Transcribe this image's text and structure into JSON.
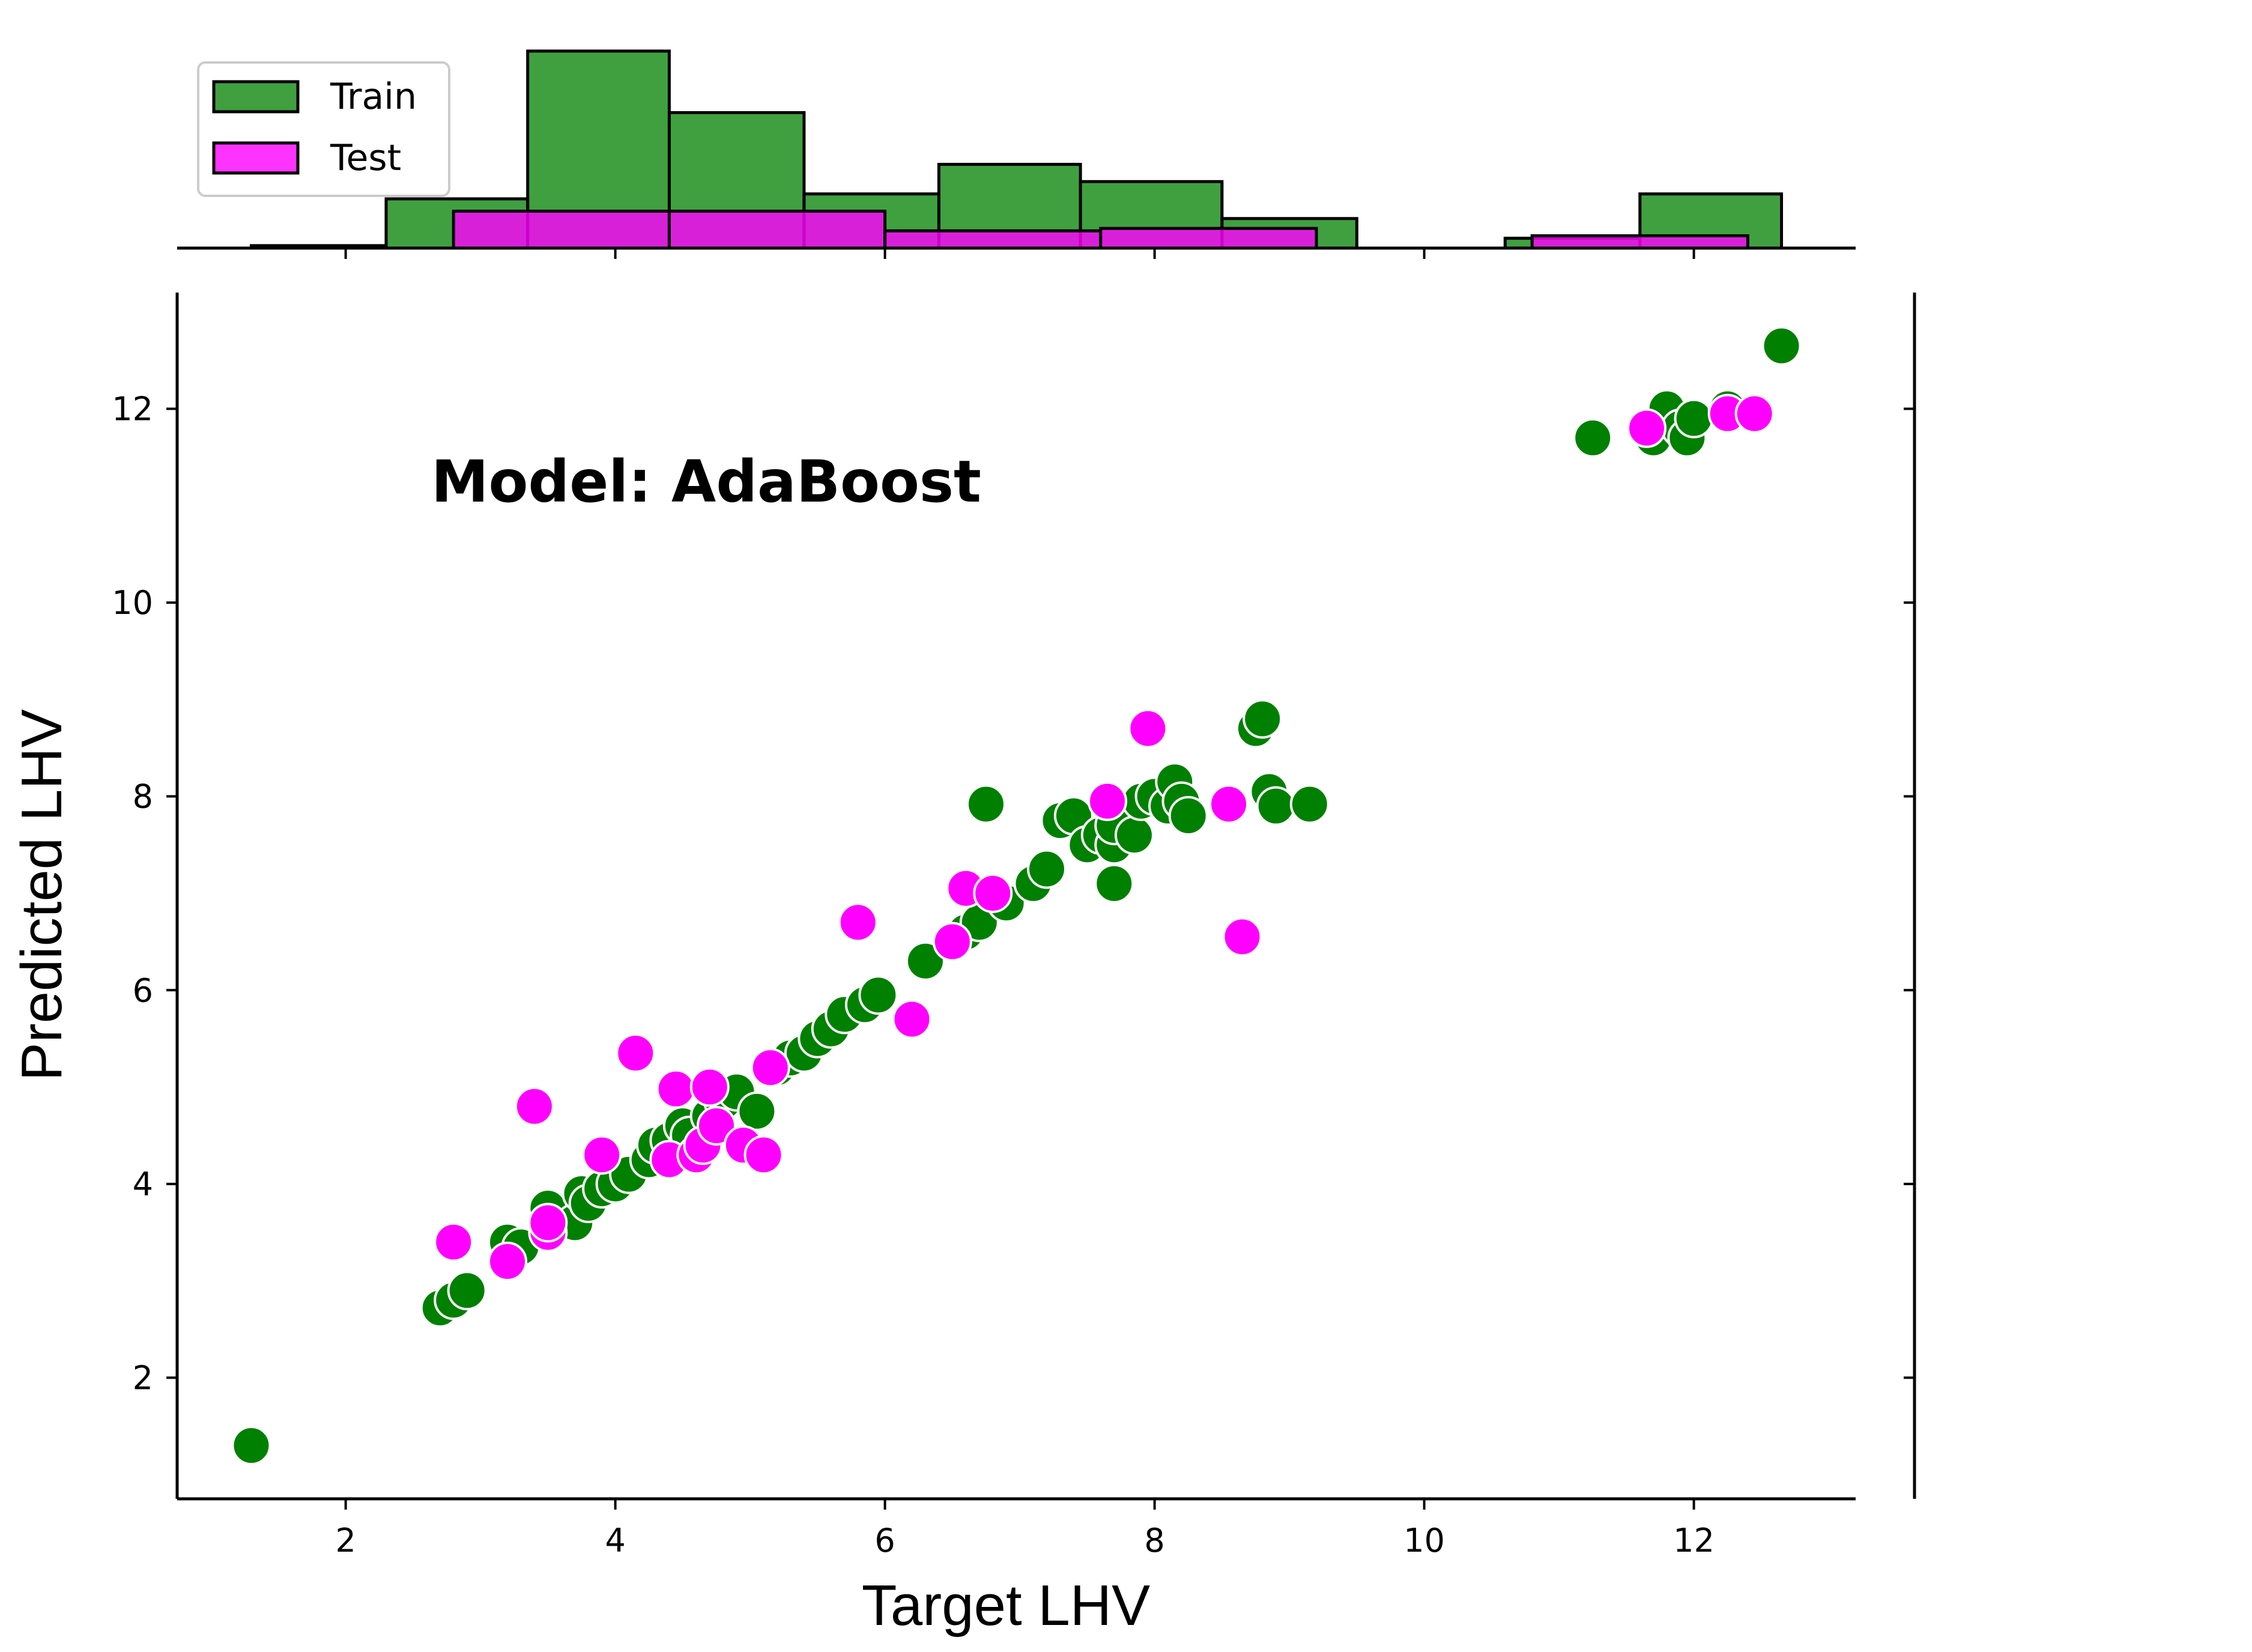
{
  "chart_data": {
    "type": "scatter",
    "xlabel": "Target LHV",
    "ylabel": "Predicted LHV",
    "annotation": "Model: AdaBoost",
    "xlim": [
      0.75,
      13.2
    ],
    "ylim": [
      0.75,
      13.2
    ],
    "x_ticks": [
      "2",
      "4",
      "6",
      "8",
      "10",
      "12"
    ],
    "y_ticks": [
      "2",
      "4",
      "6",
      "8",
      "10",
      "12"
    ],
    "legend": {
      "location": "top-left",
      "entries": [
        "Train",
        "Test"
      ]
    },
    "colors": {
      "Train": "#008000",
      "Test": "#ff00ff",
      "edge": "#ffffff",
      "hist_edge": "#000000"
    },
    "series": [
      {
        "name": "Train",
        "points": [
          [
            1.3,
            1.3
          ],
          [
            2.7,
            2.72
          ],
          [
            2.8,
            2.8
          ],
          [
            2.9,
            2.9
          ],
          [
            3.2,
            3.4
          ],
          [
            3.3,
            3.35
          ],
          [
            3.5,
            3.75
          ],
          [
            3.5,
            3.6
          ],
          [
            3.7,
            3.6
          ],
          [
            3.75,
            3.9
          ],
          [
            3.8,
            3.8
          ],
          [
            3.9,
            3.95
          ],
          [
            4.0,
            4.0
          ],
          [
            4.1,
            4.1
          ],
          [
            4.25,
            4.25
          ],
          [
            4.3,
            4.4
          ],
          [
            4.4,
            4.45
          ],
          [
            4.5,
            4.6
          ],
          [
            4.55,
            4.5
          ],
          [
            4.7,
            4.7
          ],
          [
            4.8,
            4.85
          ],
          [
            4.9,
            4.95
          ],
          [
            5.05,
            4.75
          ],
          [
            5.2,
            5.2
          ],
          [
            5.3,
            5.3
          ],
          [
            5.4,
            5.35
          ],
          [
            5.5,
            5.5
          ],
          [
            5.6,
            5.6
          ],
          [
            5.7,
            5.75
          ],
          [
            5.85,
            5.85
          ],
          [
            5.95,
            5.95
          ],
          [
            6.3,
            6.3
          ],
          [
            6.5,
            6.5
          ],
          [
            6.6,
            6.6
          ],
          [
            6.7,
            6.7
          ],
          [
            6.9,
            6.9
          ],
          [
            6.75,
            7.92
          ],
          [
            7.1,
            7.1
          ],
          [
            7.2,
            7.25
          ],
          [
            7.3,
            7.75
          ],
          [
            7.4,
            7.8
          ],
          [
            7.5,
            7.5
          ],
          [
            7.6,
            7.6
          ],
          [
            7.7,
            7.5
          ],
          [
            7.7,
            7.7
          ],
          [
            7.7,
            7.1
          ],
          [
            7.85,
            7.6
          ],
          [
            7.9,
            7.95
          ],
          [
            8.0,
            8.0
          ],
          [
            8.1,
            7.9
          ],
          [
            8.15,
            8.15
          ],
          [
            8.2,
            7.95
          ],
          [
            8.25,
            7.8
          ],
          [
            8.75,
            8.7
          ],
          [
            8.8,
            8.8
          ],
          [
            8.85,
            8.05
          ],
          [
            8.9,
            7.9
          ],
          [
            9.15,
            7.92
          ],
          [
            11.25,
            11.7
          ],
          [
            11.7,
            11.7
          ],
          [
            11.8,
            12.0
          ],
          [
            11.9,
            11.8
          ],
          [
            11.95,
            11.7
          ],
          [
            12.0,
            11.9
          ],
          [
            12.25,
            12.0
          ],
          [
            12.65,
            12.65
          ]
        ]
      },
      {
        "name": "Test",
        "points": [
          [
            2.8,
            3.4
          ],
          [
            3.2,
            3.2
          ],
          [
            3.4,
            4.8
          ],
          [
            3.5,
            3.5
          ],
          [
            3.5,
            3.6
          ],
          [
            3.9,
            4.3
          ],
          [
            4.15,
            5.35
          ],
          [
            4.4,
            4.25
          ],
          [
            4.45,
            4.98
          ],
          [
            4.6,
            4.3
          ],
          [
            4.65,
            4.4
          ],
          [
            4.7,
            5.0
          ],
          [
            4.75,
            4.6
          ],
          [
            4.95,
            4.4
          ],
          [
            5.1,
            4.3
          ],
          [
            5.15,
            5.2
          ],
          [
            5.8,
            6.7
          ],
          [
            6.2,
            5.7
          ],
          [
            6.5,
            6.5
          ],
          [
            6.6,
            7.05
          ],
          [
            6.8,
            7.0
          ],
          [
            7.65,
            7.95
          ],
          [
            7.95,
            8.7
          ],
          [
            8.55,
            7.92
          ],
          [
            8.65,
            6.55
          ],
          [
            11.65,
            11.8
          ],
          [
            12.25,
            11.95
          ],
          [
            12.45,
            11.95
          ]
        ]
      }
    ],
    "marginal_histogram": {
      "axis": "x",
      "series": [
        {
          "name": "Train",
          "bins": [
            [
              1.3,
              2.3,
              0.05
            ],
            [
              2.3,
              3.35,
              1.0
            ],
            [
              3.35,
              4.4,
              4.0
            ],
            [
              4.4,
              5.4,
              2.75
            ],
            [
              5.4,
              6.4,
              1.1
            ],
            [
              6.4,
              7.45,
              1.7
            ],
            [
              7.45,
              8.5,
              1.35
            ],
            [
              8.5,
              9.5,
              0.6
            ],
            [
              9.5,
              10.6,
              0.0
            ],
            [
              10.6,
              11.6,
              0.2
            ],
            [
              11.6,
              12.65,
              1.1
            ]
          ]
        },
        {
          "name": "Test",
          "bins": [
            [
              2.8,
              4.4,
              0.75
            ],
            [
              4.4,
              6.0,
              0.75
            ],
            [
              6.0,
              7.6,
              0.35
            ],
            [
              7.6,
              9.2,
              0.4
            ],
            [
              9.2,
              10.8,
              0.0
            ],
            [
              10.8,
              12.4,
              0.25
            ]
          ]
        }
      ]
    }
  }
}
